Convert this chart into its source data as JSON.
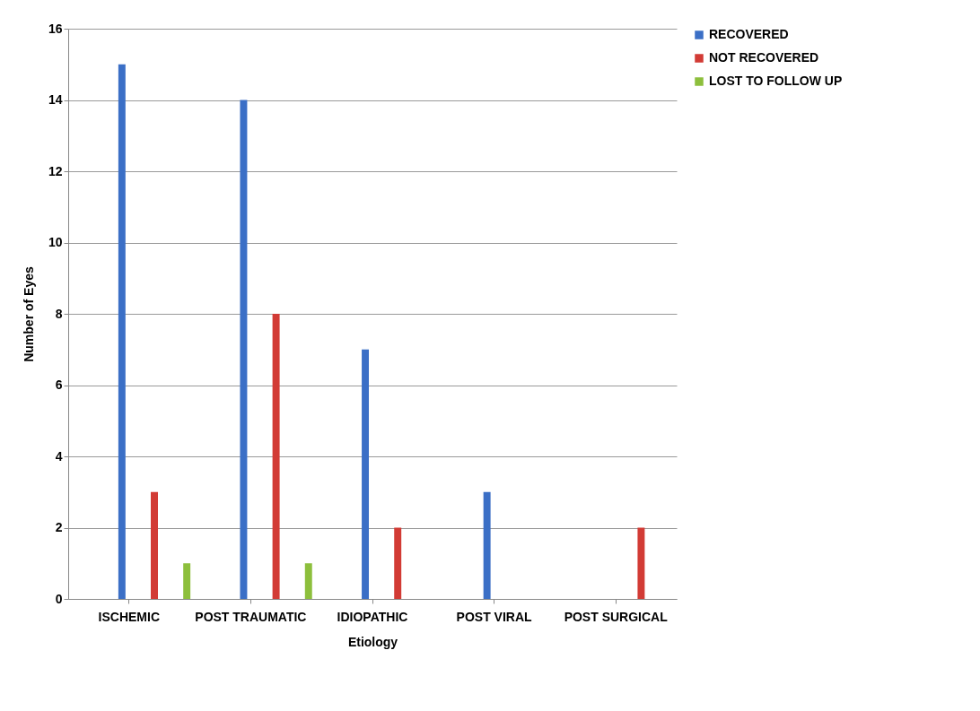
{
  "chart_data": {
    "type": "bar",
    "xlabel": "Etiology",
    "ylabel": "Number of Eyes",
    "categories": [
      "ISCHEMIC",
      "POST TRAUMATIC",
      "IDIOPATHIC",
      "POST VIRAL",
      "POST SURGICAL"
    ],
    "series": [
      {
        "name": "RECOVERED",
        "color": "#3b6fc6",
        "values": [
          15,
          14,
          7,
          3,
          null
        ]
      },
      {
        "name": "NOT RECOVERED",
        "color": "#d23b35",
        "values": [
          3,
          8,
          2,
          null,
          2
        ]
      },
      {
        "name": "LOST TO FOLLOW UP",
        "color": "#8dbf3c",
        "values": [
          1,
          1,
          null,
          null,
          null
        ]
      }
    ],
    "ylim": [
      0,
      16
    ],
    "yticks": [
      0,
      2,
      4,
      6,
      8,
      10,
      12,
      14,
      16
    ],
    "grid": "y",
    "legend": "right"
  }
}
